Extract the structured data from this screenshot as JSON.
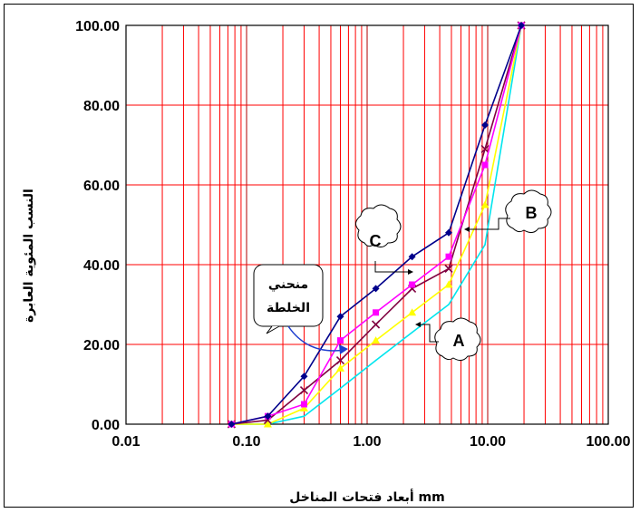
{
  "chart_data": {
    "type": "line",
    "x_scale": "log",
    "xlabel": "أبعاد فتحات المناخل mm",
    "ylabel": "النسب المئوية العابرة",
    "xlim": [
      0.01,
      100
    ],
    "ylim": [
      0,
      100
    ],
    "x_tick_labels": [
      "0.01",
      "0.10",
      "1.00",
      "10.00",
      "100.00"
    ],
    "y_tick_labels": [
      "0.00",
      "20.00",
      "40.00",
      "60.00",
      "80.00",
      "100.00"
    ],
    "grid": true,
    "series": [
      {
        "color": "#00008b",
        "marker": "diamond",
        "points": [
          [
            0.075,
            0
          ],
          [
            0.15,
            2
          ],
          [
            0.3,
            12
          ],
          [
            0.6,
            27
          ],
          [
            1.18,
            34
          ],
          [
            2.36,
            42
          ],
          [
            4.75,
            48
          ],
          [
            9.5,
            75
          ],
          [
            19,
            100
          ]
        ]
      },
      {
        "color": "#ff00ff",
        "marker": "square",
        "points": [
          [
            0.075,
            0
          ],
          [
            0.15,
            2
          ],
          [
            0.3,
            5
          ],
          [
            0.6,
            21
          ],
          [
            1.18,
            28
          ],
          [
            2.36,
            35
          ],
          [
            4.75,
            42
          ],
          [
            9.5,
            65
          ],
          [
            19,
            100
          ]
        ]
      },
      {
        "color": "#800040",
        "marker": "x",
        "points": [
          [
            0.075,
            0
          ],
          [
            0.15,
            1
          ],
          [
            0.3,
            8.5
          ],
          [
            0.6,
            16
          ],
          [
            1.18,
            25
          ],
          [
            2.36,
            34
          ],
          [
            4.75,
            39
          ],
          [
            9.5,
            69
          ],
          [
            19,
            100
          ]
        ]
      },
      {
        "color": "#ffff00",
        "marker": "triangle",
        "points": [
          [
            0.075,
            0
          ],
          [
            0.15,
            0
          ],
          [
            0.3,
            4
          ],
          [
            0.6,
            14
          ],
          [
            1.18,
            21
          ],
          [
            2.36,
            28
          ],
          [
            4.75,
            35
          ],
          [
            9.5,
            55
          ],
          [
            19,
            100
          ]
        ]
      },
      {
        "color": "#00e5ee",
        "marker": "none",
        "points": [
          [
            0.075,
            0
          ],
          [
            0.15,
            0
          ],
          [
            0.3,
            2
          ],
          [
            0.6,
            9
          ],
          [
            1.18,
            16
          ],
          [
            2.36,
            23
          ],
          [
            4.75,
            30
          ],
          [
            9.5,
            45
          ],
          [
            19,
            100
          ]
        ]
      }
    ],
    "annotations": [
      {
        "id": "A",
        "text": "A"
      },
      {
        "id": "B",
        "text": "B"
      },
      {
        "id": "C",
        "text": "C"
      },
      {
        "id": "mix",
        "lines": [
          "منحني",
          "الخلطة"
        ]
      }
    ]
  }
}
